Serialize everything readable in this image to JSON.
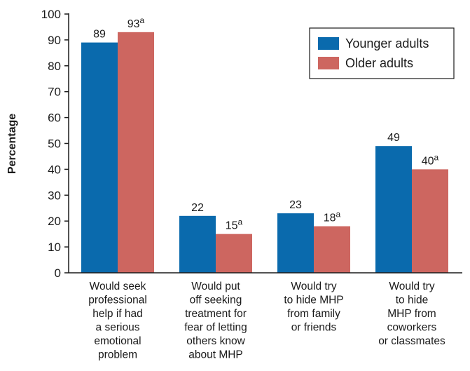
{
  "chart_data": {
    "type": "bar",
    "title": "",
    "xlabel": "",
    "ylabel": "Percentage",
    "ylim": [
      0,
      100
    ],
    "yticks": [
      "0",
      "10",
      "20",
      "30",
      "40",
      "50",
      "60",
      "70",
      "80",
      "90",
      "100"
    ],
    "grid": false,
    "legend_position": "top-right",
    "categories": [
      [
        "Would seek",
        "professional",
        "help if had",
        "a serious",
        "emotional",
        "problem"
      ],
      [
        "Would put",
        "off seeking",
        "treatment for",
        "fear of letting",
        "others know",
        "about MHP"
      ],
      [
        "Would try",
        "to hide MHP",
        "from family",
        "or friends"
      ],
      [
        "Would try",
        "to hide",
        "MHP from",
        "coworkers",
        "or classmates"
      ]
    ],
    "series": [
      {
        "name": "Younger adults",
        "color": "#0a6aad",
        "values": [
          89,
          22,
          23,
          49
        ],
        "labels": [
          "89",
          "22",
          "23",
          "49"
        ],
        "superscripts": [
          "",
          "",
          "",
          ""
        ]
      },
      {
        "name": "Older adults",
        "color": "#cd6660",
        "values": [
          93,
          15,
          18,
          40
        ],
        "labels": [
          "93",
          "15",
          "18",
          "40"
        ],
        "superscripts": [
          "a",
          "a",
          "a",
          "a"
        ]
      }
    ]
  }
}
